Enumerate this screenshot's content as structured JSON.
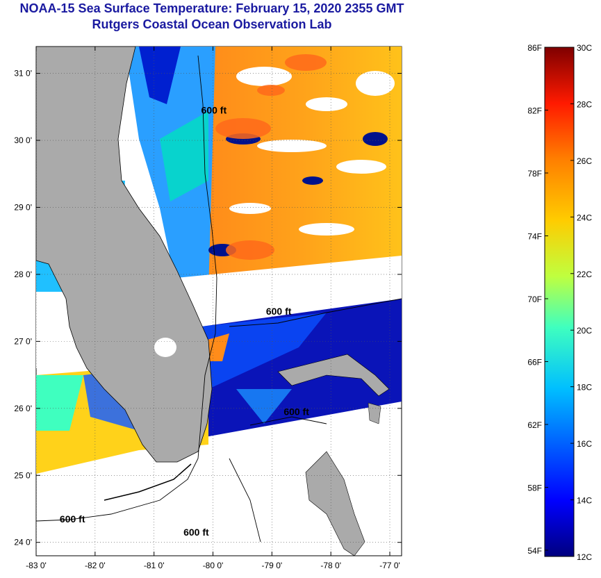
{
  "title": "NOAA-15 Sea Surface Temperature:  February 15, 2020 2355 GMT",
  "subtitle": "Rutgers Coastal Ocean Observation Lab",
  "map": {
    "lon_range": [
      -83,
      -76.8
    ],
    "lat_range": [
      23.8,
      31.4
    ],
    "lon_ticks": [
      {
        "value": -83,
        "label": "-83 0'"
      },
      {
        "value": -82,
        "label": "-82 0'"
      },
      {
        "value": -81,
        "label": "-81 0'"
      },
      {
        "value": -80,
        "label": "-80 0'"
      },
      {
        "value": -79,
        "label": "-79 0'"
      },
      {
        "value": -78,
        "label": "-78 0'"
      },
      {
        "value": -77,
        "label": "-77 0'"
      }
    ],
    "lat_ticks": [
      {
        "value": 31,
        "label": "31 0'"
      },
      {
        "value": 30,
        "label": "30 0'"
      },
      {
        "value": 29,
        "label": "29 0'"
      },
      {
        "value": 28,
        "label": "28 0'"
      },
      {
        "value": 27,
        "label": "27 0'"
      },
      {
        "value": 26,
        "label": "26 0'"
      },
      {
        "value": 25,
        "label": "25 0'"
      },
      {
        "value": 24,
        "label": "24 0'"
      }
    ],
    "contour_labels": [
      {
        "text": "600 ft",
        "lon": -80.2,
        "lat": 30.4
      },
      {
        "text": "600 ft",
        "lon": -79.1,
        "lat": 27.4
      },
      {
        "text": "600 ft",
        "lon": -78.8,
        "lat": 25.9
      },
      {
        "text": "600 ft",
        "lon": -82.6,
        "lat": 24.3
      },
      {
        "text": "600 ft",
        "lon": -80.5,
        "lat": 24.1
      }
    ],
    "colors": {
      "land": "#aaaaaa",
      "cloud": "#ffffff",
      "grid": "#555555"
    }
  },
  "colorbar": {
    "c_range": [
      12,
      30
    ],
    "f_labels": [
      "86F",
      "82F",
      "78F",
      "74F",
      "70F",
      "66F",
      "62F",
      "58F",
      "54F"
    ],
    "c_labels": [
      "30C",
      "28C",
      "26C",
      "24C",
      "22C",
      "20C",
      "18C",
      "16C",
      "14C",
      "12C"
    ]
  }
}
